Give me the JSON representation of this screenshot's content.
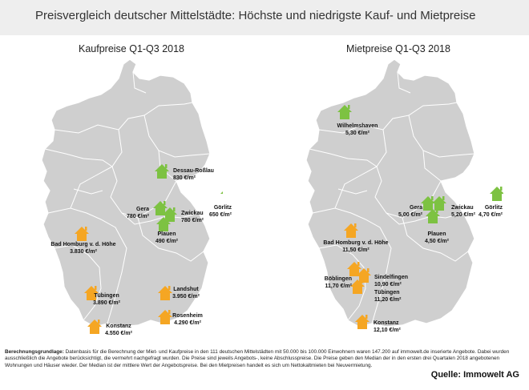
{
  "title": "Preisvergleich deutscher Mittelstädte: Höchste und niedrigste Kauf- und Mietpreise",
  "maps": {
    "kauf": {
      "subtitle": "Kaufpreise Q1-Q3 2018",
      "cities": {
        "dessau": {
          "name": "Dessau-Roßlau",
          "value": "830 €/m²"
        },
        "goerlitz": {
          "name": "Görlitz",
          "value": "650 €/m²"
        },
        "gera": {
          "name": "Gera",
          "value": "780 €/m²"
        },
        "zwickau": {
          "name": "Zwickau",
          "value": "780 €/m²"
        },
        "plauen": {
          "name": "Plauen",
          "value": "490 €/m²"
        },
        "badhomburg": {
          "name": "Bad Homburg v. d. Höhe",
          "value": "3.830 €/m²"
        },
        "tuebingen": {
          "name": "Tübingen",
          "value": "3.890 €/m²"
        },
        "landshut": {
          "name": "Landshut",
          "value": "3.950 €/m²"
        },
        "rosenheim": {
          "name": "Rosenheim",
          "value": "4.290 €/m²"
        },
        "konstanz": {
          "name": "Konstanz",
          "value": "4.550 €/m²"
        }
      }
    },
    "miet": {
      "subtitle": "Mietpreise Q1-Q3 2018",
      "cities": {
        "wilhelmshaven": {
          "name": "Wilhelmshaven",
          "value": "5,30 €/m²"
        },
        "gera": {
          "name": "Gera",
          "value": "5,00 €/m²"
        },
        "zwickau": {
          "name": "Zwickau",
          "value": "5,20 €/m²"
        },
        "goerlitz": {
          "name": "Görlitz",
          "value": "4,70 €/m²"
        },
        "plauen": {
          "name": "Plauen",
          "value": "4,50 €/m²"
        },
        "badhomburg": {
          "name": "Bad Homburg v. d. Höhe",
          "value": "11,50 €/m²"
        },
        "boeblingen": {
          "name": "Böblingen",
          "value": "11,70 €/m²"
        },
        "sindelfingen": {
          "name": "Sindelfingen",
          "value": "10,90 €/m²"
        },
        "tuebingen": {
          "name": "Tübingen",
          "value": "11,20 €/m²"
        },
        "konstanz": {
          "name": "Konstanz",
          "value": "12,10 €/m²"
        }
      }
    }
  },
  "footer": {
    "label": "Berechnungsgrundlage:",
    "text": "Datenbasis für die Berechnung der Miet- und Kaufpreise in den 111 deutschen Mittelstädten mit 50.000 bis 100.000 Einwohnern waren 147.200 auf immowelt.de inserierte Angebote. Dabei wurden ausschließlich die Angebote berücksichtigt, die vermehrt nachgefragt wurden. Die Preise sind jeweils Angebots-, keine Abschlusspreise. Die Preise geben den Median der in den ersten drei Quartalen 2018 angebotenen Wohnungen und Häuser wieder. Der Median ist der mittlere Wert der Angebotspreise. Bei den Mietpreisen handelt es sich um Nettokaltmieten bei Neuvermietung."
  },
  "source": "Quelle: Immowelt AG",
  "colors": {
    "low": "#7dc242",
    "high": "#f5a623",
    "land": "#cfcfcf",
    "border": "#ffffff"
  },
  "icons": {
    "marker": "house-icon"
  }
}
